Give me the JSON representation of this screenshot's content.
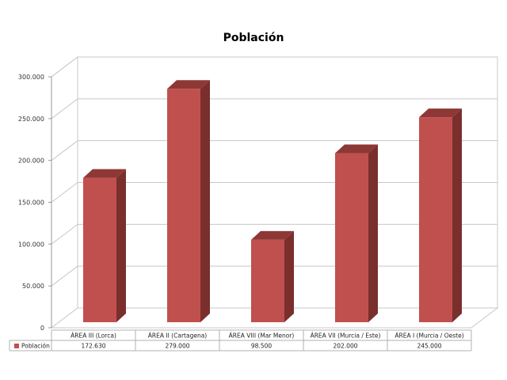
{
  "chart_data": {
    "type": "bar",
    "title": "Población",
    "categories": [
      "ÁREA III (Lorca)",
      "ÁREA II (Cartagena)",
      "ÁREA VIII (Mar Menor)",
      "ÁREA VII (Murcia / Este)",
      "ÁREA I (Murcia / Oeste)"
    ],
    "series": [
      {
        "name": "Población",
        "values": [
          172630,
          279000,
          98500,
          202000,
          245000
        ],
        "value_labels": [
          "172.630",
          "279.000",
          "98.500",
          "202.000",
          "245.000"
        ],
        "color": "#c0504d"
      }
    ],
    "ylim": [
      0,
      300000
    ],
    "yticks": [
      0,
      50000,
      100000,
      150000,
      200000,
      250000,
      300000
    ],
    "ytick_labels": [
      "0",
      "50.000",
      "100.000",
      "150.000",
      "200.000",
      "250.000",
      "300.000"
    ],
    "grid": true,
    "legend": "data-table-left",
    "style": "3d-column"
  }
}
